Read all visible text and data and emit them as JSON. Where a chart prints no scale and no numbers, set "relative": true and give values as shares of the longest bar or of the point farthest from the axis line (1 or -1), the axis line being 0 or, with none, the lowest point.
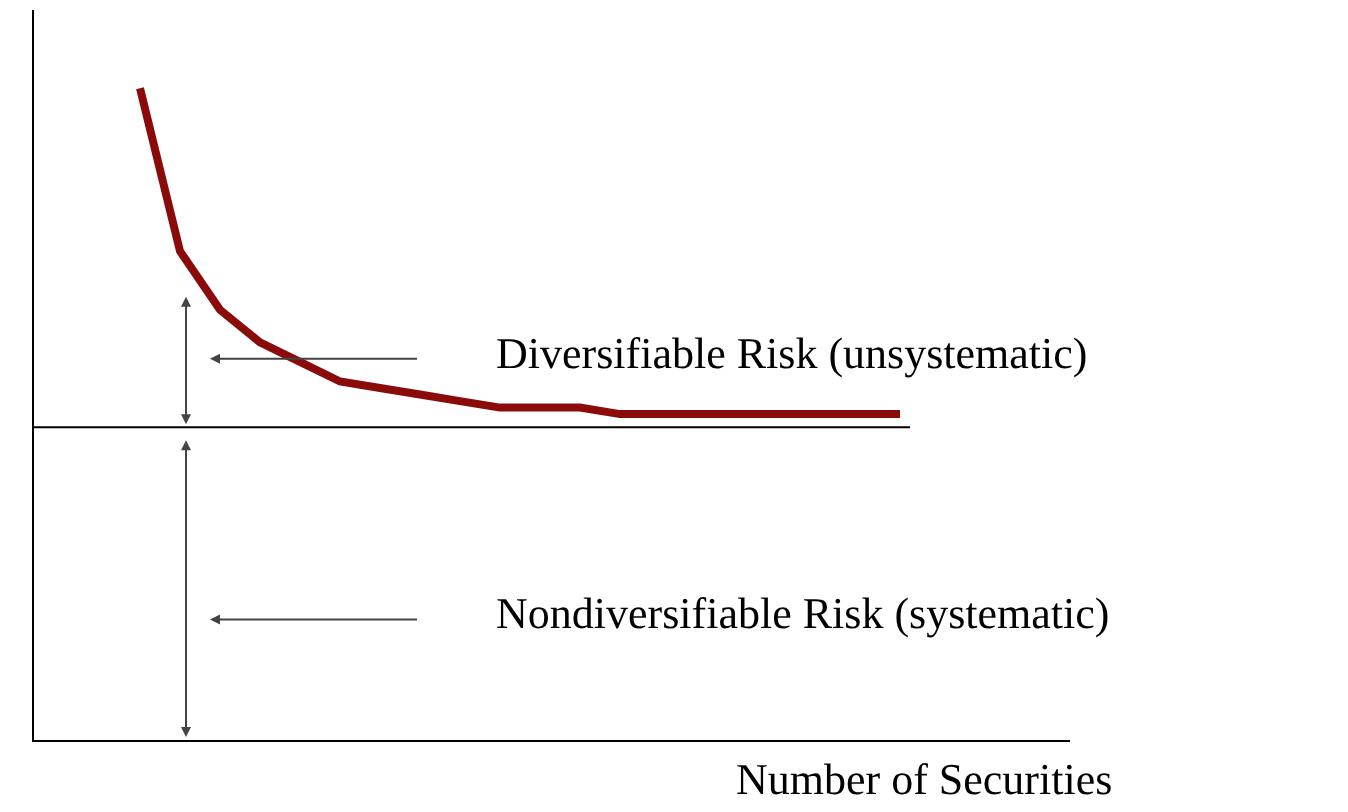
{
  "chart_data": {
    "type": "line",
    "relative": true,
    "xlabel": "Number of Securities",
    "categories": [
      null,
      null,
      null,
      null,
      null,
      null,
      null,
      null,
      null,
      null,
      null,
      null,
      null,
      null,
      null,
      null,
      null,
      null,
      null,
      null
    ],
    "series": [
      {
        "color": "#8b0a0a",
        "values": [
          1.0,
          0.75,
          0.66,
          0.61,
          0.58,
          0.55,
          0.54,
          0.53,
          0.52,
          0.51,
          0.51,
          0.51,
          0.5,
          0.5,
          0.5,
          0.5,
          0.5,
          0.5,
          0.5,
          0.5
        ]
      }
    ],
    "ref_lines": [
      {
        "axis": "y",
        "value": 0.48,
        "color": "#000000"
      }
    ],
    "annotations": [
      "Diversifiable Risk (unsystematic)",
      "Nondiversifiable Risk (systematic)"
    ],
    "grid": false,
    "marker": "none",
    "line_style": "solid"
  }
}
